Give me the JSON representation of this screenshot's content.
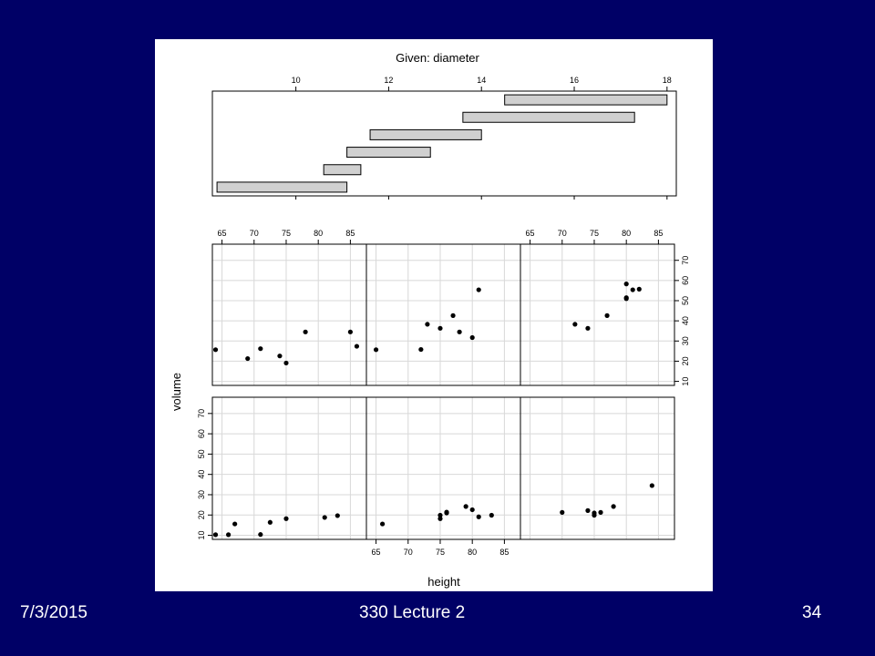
{
  "slide": {
    "date": "7/3/2015",
    "title": "330 Lecture 2",
    "page_number": "34",
    "background_color": "#000066",
    "text_color": "#ffffff"
  },
  "chart_data": {
    "type": "scatter",
    "title": "Given: diameter",
    "xlabel": "height",
    "ylabel": "volume",
    "given": {
      "variable": "diameter",
      "ticks": [
        10,
        12,
        14,
        16,
        18
      ],
      "range": [
        8.2,
        18.2
      ],
      "intervals": [
        [
          8.3,
          11.1
        ],
        [
          10.6,
          11.4
        ],
        [
          11.1,
          12.9
        ],
        [
          11.6,
          14.0
        ],
        [
          13.6,
          17.3
        ],
        [
          14.5,
          18.0
        ]
      ]
    },
    "x_ticks": [
      65,
      70,
      75,
      80,
      85
    ],
    "y_ticks": [
      10,
      20,
      30,
      40,
      50,
      60,
      70
    ],
    "xlim": [
      63.5,
      87.5
    ],
    "ylim": [
      8,
      78
    ],
    "grid": true,
    "panels": [
      {
        "label": "bottom-left",
        "points": [
          [
            64,
            10.3
          ],
          [
            66,
            10.3
          ],
          [
            67,
            15.6
          ],
          [
            71,
            10.4
          ],
          [
            72.5,
            16.4
          ],
          [
            75,
            18.2
          ],
          [
            81,
            18.8
          ],
          [
            83,
            19.7
          ]
        ]
      },
      {
        "label": "bottom-middle",
        "points": [
          [
            66,
            15.6
          ],
          [
            75,
            18.2
          ],
          [
            75,
            19.9
          ],
          [
            76,
            21.0
          ],
          [
            76,
            21.4
          ],
          [
            79,
            24.2
          ],
          [
            80,
            22.6
          ],
          [
            81,
            19.1
          ],
          [
            83,
            19.9
          ]
        ]
      },
      {
        "label": "bottom-right",
        "points": [
          [
            70,
            21.3
          ],
          [
            74,
            22.2
          ],
          [
            75,
            19.9
          ],
          [
            75,
            21.0
          ],
          [
            76,
            21.3
          ],
          [
            78,
            24.2
          ],
          [
            84,
            34.5
          ]
        ]
      },
      {
        "label": "top-left",
        "points": [
          [
            64,
            25.7
          ],
          [
            69,
            21.3
          ],
          [
            71,
            26.2
          ],
          [
            74,
            22.6
          ],
          [
            75,
            19.1
          ],
          [
            78,
            34.5
          ],
          [
            85,
            34.5
          ],
          [
            86,
            27.4
          ]
        ]
      },
      {
        "label": "top-middle",
        "points": [
          [
            65,
            25.7
          ],
          [
            72,
            25.8
          ],
          [
            73,
            38.3
          ],
          [
            75,
            36.3
          ],
          [
            77,
            42.6
          ],
          [
            78,
            34.5
          ],
          [
            80,
            31.7
          ],
          [
            81,
            55.4
          ]
        ]
      },
      {
        "label": "top-right",
        "points": [
          [
            72,
            38.3
          ],
          [
            74,
            36.3
          ],
          [
            77,
            42.6
          ],
          [
            80,
            51.0
          ],
          [
            80,
            51.5
          ],
          [
            80,
            58.3
          ],
          [
            81,
            55.4
          ],
          [
            82,
            55.7
          ]
        ]
      }
    ]
  }
}
